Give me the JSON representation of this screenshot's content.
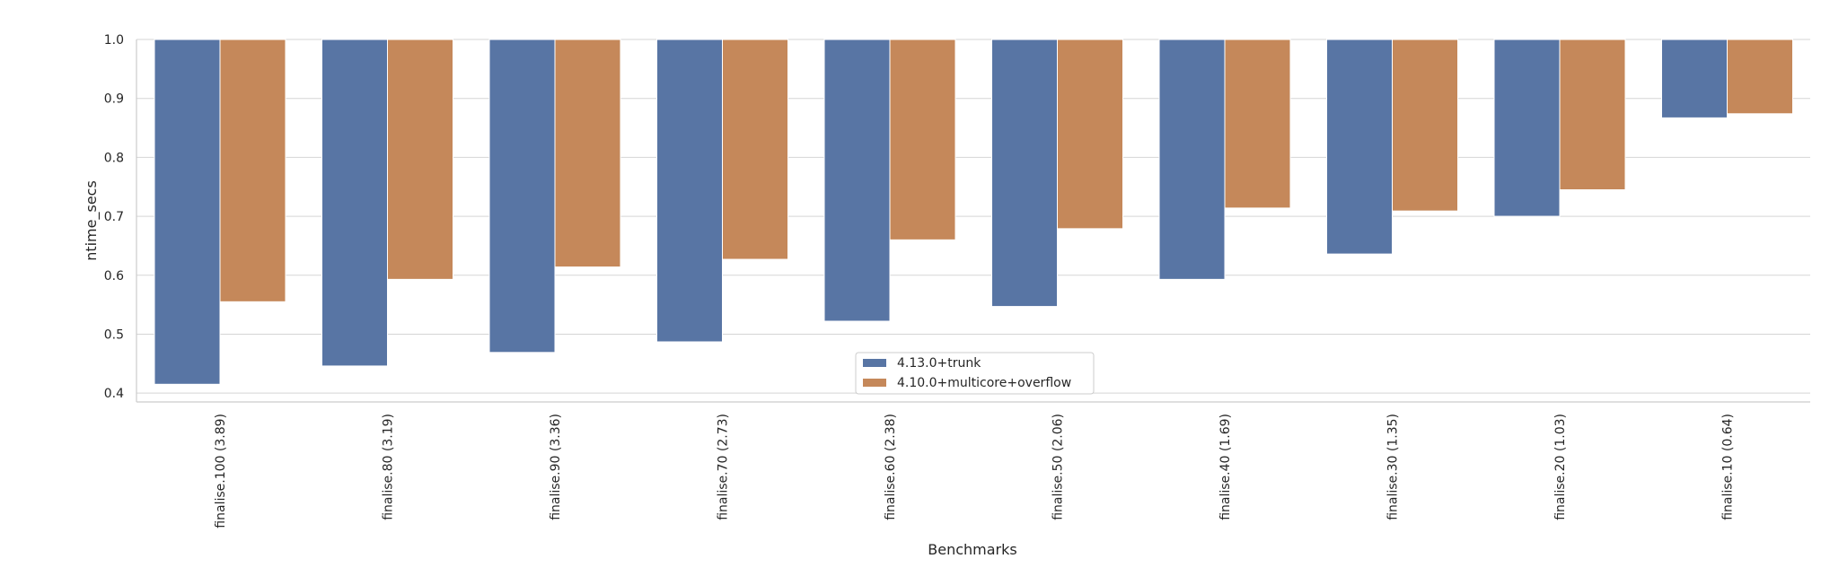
{
  "chart_data": {
    "type": "bar",
    "xlabel": "Benchmarks",
    "ylabel": "ntime_secs",
    "ylim": [
      0.385,
      1.0
    ],
    "yticks": [
      "0.4",
      "0.5",
      "0.6",
      "0.7",
      "0.8",
      "0.9",
      "1.0"
    ],
    "grid": "horizontal",
    "legend_placement": "lower-center",
    "categories": [
      "finalise.100 (3.89)",
      "finalise.80 (3.19)",
      "finalise.90 (3.36)",
      "finalise.70 (2.73)",
      "finalise.60 (2.38)",
      "finalise.50 (2.06)",
      "finalise.40 (1.69)",
      "finalise.30 (1.35)",
      "finalise.20 (1.03)",
      "finalise.10 (0.64)"
    ],
    "series": [
      {
        "name": "4.13.0+trunk",
        "color": "#5875a4",
        "values": [
          0.415,
          0.446,
          0.469,
          0.487,
          0.522,
          0.547,
          0.593,
          0.636,
          0.7,
          0.867
        ]
      },
      {
        "name": "4.10.0+multicore+overflow",
        "color": "#c5885a",
        "values": [
          0.555,
          0.593,
          0.614,
          0.627,
          0.66,
          0.679,
          0.714,
          0.709,
          0.745,
          0.874
        ]
      }
    ]
  }
}
